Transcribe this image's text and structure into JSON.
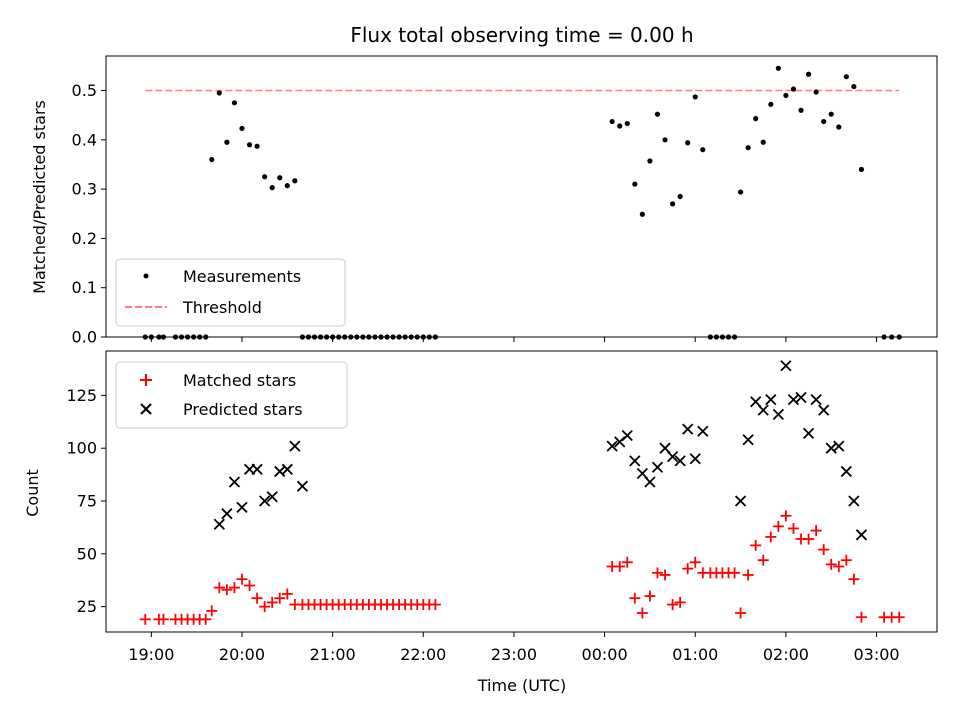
{
  "chart_data": [
    {
      "type": "scatter",
      "title": "Flux total observing time = 0.00 h",
      "xlabel": "",
      "ylabel": "Matched/Predicted stars",
      "ylim": [
        0,
        0.57
      ],
      "y_ticks": [
        0.0,
        0.1,
        0.2,
        0.3,
        0.4,
        0.5
      ],
      "y_tick_labels": [
        "0.0",
        "0.1",
        "0.2",
        "0.3",
        "0.4",
        "0.5"
      ],
      "grid": false,
      "legend_placement": "lower-left",
      "series": [
        {
          "name": "Measurements",
          "marker": "dot",
          "color": "#000000",
          "x": [
            "18:56",
            "19:00",
            "19:05",
            "19:08",
            "19:16",
            "19:20",
            "19:24",
            "19:28",
            "19:32",
            "19:36",
            "19:40",
            "19:45",
            "19:50",
            "19:55",
            "20:00",
            "20:05",
            "20:10",
            "20:15",
            "20:20",
            "20:25",
            "20:30",
            "20:35",
            "20:40",
            "20:44",
            "20:48",
            "20:52",
            "20:56",
            "21:00",
            "21:04",
            "21:08",
            "21:12",
            "21:16",
            "21:20",
            "21:24",
            "21:28",
            "21:32",
            "21:36",
            "21:40",
            "21:44",
            "21:48",
            "21:52",
            "21:56",
            "22:00",
            "22:04",
            "22:08",
            "00:05",
            "00:10",
            "00:15",
            "00:20",
            "00:25",
            "00:30",
            "00:35",
            "00:40",
            "00:45",
            "00:50",
            "00:55",
            "01:00",
            "01:05",
            "01:10",
            "01:14",
            "01:18",
            "01:22",
            "01:26",
            "01:30",
            "01:35",
            "01:40",
            "01:45",
            "01:50",
            "01:55",
            "02:00",
            "02:05",
            "02:10",
            "02:15",
            "02:20",
            "02:25",
            "02:30",
            "02:35",
            "02:40",
            "02:45",
            "02:50",
            "03:05",
            "03:10",
            "03:15"
          ],
          "y": [
            0,
            0,
            0,
            0,
            0,
            0,
            0,
            0,
            0,
            0,
            0.36,
            0.495,
            0.395,
            0.475,
            0.423,
            0.39,
            0.387,
            0.325,
            0.303,
            0.323,
            0.307,
            0.317,
            0,
            0,
            0,
            0,
            0,
            0,
            0,
            0,
            0,
            0,
            0,
            0,
            0,
            0,
            0,
            0,
            0,
            0,
            0,
            0,
            0,
            0,
            0,
            0.437,
            0.428,
            0.433,
            0.31,
            0.249,
            0.357,
            0.452,
            0.4,
            0.27,
            0.285,
            0.394,
            0.487,
            0.38,
            0,
            0,
            0,
            0,
            0,
            0.294,
            0.384,
            0.443,
            0.395,
            0.472,
            0.545,
            0.49,
            0.503,
            0.46,
            0.533,
            0.497,
            0.437,
            0.452,
            0.426,
            0.528,
            0.508,
            0.34,
            0,
            0,
            0
          ]
        },
        {
          "name": "Threshold",
          "line_style": "dashed",
          "color": "#ff7f7f",
          "x": [
            "18:56",
            "03:15"
          ],
          "y": [
            0.5,
            0.5
          ]
        }
      ]
    },
    {
      "type": "scatter",
      "title": "",
      "xlabel": "Time (UTC)",
      "ylabel": "Count",
      "ylim": [
        13,
        146
      ],
      "y_ticks": [
        25,
        50,
        75,
        100,
        125
      ],
      "y_tick_labels": [
        "25",
        "50",
        "75",
        "100",
        "125"
      ],
      "x_ticks": [
        "19:00",
        "20:00",
        "21:00",
        "22:00",
        "23:00",
        "00:00",
        "01:00",
        "02:00",
        "03:00"
      ],
      "grid": false,
      "legend_placement": "top-left",
      "series": [
        {
          "name": "Matched stars",
          "marker": "plus",
          "color": "#ff0000",
          "x": [
            "18:56",
            "19:05",
            "19:08",
            "19:16",
            "19:20",
            "19:24",
            "19:28",
            "19:32",
            "19:36",
            "19:40",
            "19:45",
            "19:50",
            "19:55",
            "20:00",
            "20:05",
            "20:10",
            "20:15",
            "20:20",
            "20:25",
            "20:30",
            "20:35",
            "20:40",
            "20:44",
            "20:48",
            "20:52",
            "20:56",
            "21:00",
            "21:04",
            "21:08",
            "21:12",
            "21:16",
            "21:20",
            "21:24",
            "21:28",
            "21:32",
            "21:36",
            "21:40",
            "21:44",
            "21:48",
            "21:52",
            "21:56",
            "22:00",
            "22:04",
            "22:08",
            "00:05",
            "00:10",
            "00:15",
            "00:20",
            "00:25",
            "00:30",
            "00:35",
            "00:40",
            "00:45",
            "00:50",
            "00:55",
            "01:00",
            "01:05",
            "01:10",
            "01:14",
            "01:18",
            "01:22",
            "01:26",
            "01:30",
            "01:35",
            "01:40",
            "01:45",
            "01:50",
            "01:55",
            "02:00",
            "02:05",
            "02:10",
            "02:15",
            "02:20",
            "02:25",
            "02:30",
            "02:35",
            "02:40",
            "02:45",
            "02:50",
            "03:05",
            "03:10",
            "03:15"
          ],
          "y": [
            19,
            19,
            19,
            19,
            19,
            19,
            19,
            19,
            19,
            23,
            34,
            33,
            34,
            38,
            35,
            29,
            25,
            27,
            29,
            31,
            26,
            26,
            26,
            26,
            26,
            26,
            26,
            26,
            26,
            26,
            26,
            26,
            26,
            26,
            26,
            26,
            26,
            26,
            26,
            26,
            26,
            26,
            26,
            26,
            44,
            44,
            46,
            29,
            22,
            30,
            41,
            40,
            26,
            27,
            43,
            46,
            41,
            41,
            41,
            41,
            41,
            41,
            22,
            40,
            54,
            47,
            58,
            63,
            68,
            62,
            57,
            57,
            61,
            52,
            45,
            44,
            47,
            38,
            20,
            20,
            20,
            20
          ]
        },
        {
          "name": "Predicted stars",
          "marker": "x",
          "color": "#000000",
          "x": [
            "19:45",
            "19:50",
            "19:55",
            "20:00",
            "20:05",
            "20:10",
            "20:15",
            "20:20",
            "20:25",
            "20:30",
            "20:35",
            "20:40",
            "20:44",
            "00:05",
            "00:10",
            "00:15",
            "00:20",
            "00:25",
            "00:30",
            "00:35",
            "00:40",
            "00:45",
            "00:50",
            "00:55",
            "01:00",
            "01:05",
            "01:30",
            "01:35",
            "01:40",
            "01:45",
            "01:50",
            "01:55",
            "02:00",
            "02:05",
            "02:10",
            "02:15",
            "02:20",
            "02:25",
            "02:30",
            "02:35",
            "02:40",
            "02:45",
            "02:50"
          ],
          "y": [
            64,
            69,
            84,
            72,
            90,
            90,
            75,
            77,
            89,
            90,
            101,
            82,
            null,
            101,
            103,
            106,
            94,
            88,
            84,
            91,
            100,
            96,
            94,
            109,
            95,
            108,
            75,
            104,
            122,
            118,
            123,
            116,
            139,
            123,
            124,
            107,
            123,
            118,
            100,
            101,
            89,
            75,
            59
          ]
        }
      ]
    }
  ]
}
